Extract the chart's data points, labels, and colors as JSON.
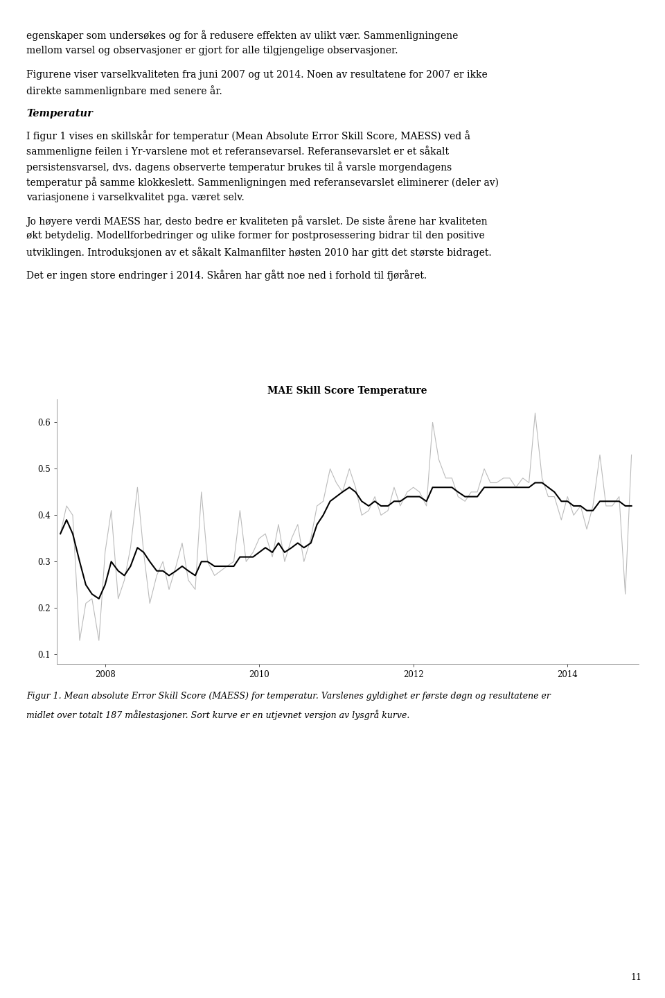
{
  "title": "MAE Skill Score Temperature",
  "caption_line1": "Figur 1. Mean absolute Error Skill Score (MAESS) for temperatur. Varslenes gyldighet er første døgn og resultatene er",
  "caption_line2": "midlet over totalt 187 målestasjoner. Sort kurve er en utjevnet versjon av lysgrå kurve.",
  "text_blocks": [
    "egenskaper som undersøkes og for å redusere effekten av ulikt vær. Sammenligningene",
    "mellom varsel og observasjoner er gjort for alle tilgjengelige observasjoner.",
    "",
    "Figurene viser varselkvaliteten fra juni 2007 og ut 2014. Noen av resultatene for 2007 er ikke",
    "direkte sammenlignbare med senere år."
  ],
  "bold_heading": "Temperatur",
  "paragraph1": "I figur 1 vises en skillskår for temperatur (Mean Absolute Error Skill Score, MAESS) ved å sammenligne feilen i Yr-varslene mot et referansevarsel. Referansevarslet er et såkalt persistensvarsel, dvs. dagens observerte temperatur brukes til å varsle morgendagens temperatur på samme klokkeslett. Sammenligningen med referansevarslet eliminerer (deler av) variasjonene i varselkvalitet pga. været selv.",
  "paragraph2": "Jo høyere verdi MAESS har, desto bedre er kvaliteten på varslet. De siste årene har kvaliteten økt betydelig. Modellforbedringer og ulike former for postprosessering bidrar til den positive utviklingen. Introduksjonen av et såkalt Kalmanfilter høsten 2010 har gitt det største bidraget.",
  "paragraph3": "Det er ingen store endringer i 2014. Skåren har gått noe ned i forhold til fjøråret.",
  "page_number": "11",
  "ylim": [
    0.08,
    0.65
  ],
  "yticks": [
    0.1,
    0.2,
    0.3,
    0.4,
    0.5,
    0.6
  ],
  "ytick_labels": [
    "0.1",
    "0.2",
    "0.3",
    "0.4",
    "0.5",
    "0.6"
  ],
  "xtick_positions": [
    2008.0,
    2010.0,
    2012.0,
    2014.0
  ],
  "xtick_labels": [
    "2008",
    "2010",
    "2012",
    "2014"
  ],
  "raw_color": "#bbbbbb",
  "smooth_color": "#000000",
  "raw_linewidth": 0.8,
  "smooth_linewidth": 1.5,
  "raw_x": [
    2007.42,
    2007.5,
    2007.58,
    2007.67,
    2007.75,
    2007.83,
    2007.92,
    2008.0,
    2008.08,
    2008.17,
    2008.25,
    2008.33,
    2008.42,
    2008.5,
    2008.58,
    2008.67,
    2008.75,
    2008.83,
    2008.92,
    2009.0,
    2009.08,
    2009.17,
    2009.25,
    2009.33,
    2009.42,
    2009.5,
    2009.58,
    2009.67,
    2009.75,
    2009.83,
    2009.92,
    2010.0,
    2010.08,
    2010.17,
    2010.25,
    2010.33,
    2010.42,
    2010.5,
    2010.58,
    2010.67,
    2010.75,
    2010.83,
    2010.92,
    2011.0,
    2011.08,
    2011.17,
    2011.25,
    2011.33,
    2011.42,
    2011.5,
    2011.58,
    2011.67,
    2011.75,
    2011.83,
    2011.92,
    2012.0,
    2012.08,
    2012.17,
    2012.25,
    2012.33,
    2012.42,
    2012.5,
    2012.58,
    2012.67,
    2012.75,
    2012.83,
    2012.92,
    2013.0,
    2013.08,
    2013.17,
    2013.25,
    2013.33,
    2013.42,
    2013.5,
    2013.58,
    2013.67,
    2013.75,
    2013.83,
    2013.92,
    2014.0,
    2014.08,
    2014.17,
    2014.25,
    2014.33,
    2014.42,
    2014.5,
    2014.58,
    2014.67,
    2014.75,
    2014.83
  ],
  "raw_y": [
    0.36,
    0.42,
    0.4,
    0.13,
    0.21,
    0.22,
    0.13,
    0.32,
    0.41,
    0.22,
    0.26,
    0.33,
    0.46,
    0.32,
    0.21,
    0.27,
    0.3,
    0.24,
    0.29,
    0.34,
    0.26,
    0.24,
    0.45,
    0.3,
    0.27,
    0.28,
    0.29,
    0.3,
    0.41,
    0.3,
    0.32,
    0.35,
    0.36,
    0.31,
    0.38,
    0.3,
    0.35,
    0.38,
    0.3,
    0.35,
    0.42,
    0.43,
    0.5,
    0.47,
    0.45,
    0.5,
    0.46,
    0.4,
    0.41,
    0.44,
    0.4,
    0.41,
    0.46,
    0.42,
    0.45,
    0.46,
    0.45,
    0.42,
    0.6,
    0.52,
    0.48,
    0.48,
    0.44,
    0.43,
    0.45,
    0.45,
    0.5,
    0.47,
    0.47,
    0.48,
    0.48,
    0.46,
    0.48,
    0.47,
    0.62,
    0.48,
    0.44,
    0.44,
    0.39,
    0.44,
    0.4,
    0.42,
    0.37,
    0.42,
    0.53,
    0.42,
    0.42,
    0.44,
    0.23,
    0.53
  ],
  "smooth_x": [
    2007.42,
    2007.5,
    2007.58,
    2007.67,
    2007.75,
    2007.83,
    2007.92,
    2008.0,
    2008.08,
    2008.17,
    2008.25,
    2008.33,
    2008.42,
    2008.5,
    2008.58,
    2008.67,
    2008.75,
    2008.83,
    2008.92,
    2009.0,
    2009.08,
    2009.17,
    2009.25,
    2009.33,
    2009.42,
    2009.5,
    2009.58,
    2009.67,
    2009.75,
    2009.83,
    2009.92,
    2010.0,
    2010.08,
    2010.17,
    2010.25,
    2010.33,
    2010.42,
    2010.5,
    2010.58,
    2010.67,
    2010.75,
    2010.83,
    2010.92,
    2011.0,
    2011.08,
    2011.17,
    2011.25,
    2011.33,
    2011.42,
    2011.5,
    2011.58,
    2011.67,
    2011.75,
    2011.83,
    2011.92,
    2012.0,
    2012.08,
    2012.17,
    2012.25,
    2012.33,
    2012.42,
    2012.5,
    2012.58,
    2012.67,
    2012.75,
    2012.83,
    2012.92,
    2013.0,
    2013.08,
    2013.17,
    2013.25,
    2013.33,
    2013.42,
    2013.5,
    2013.58,
    2013.67,
    2013.75,
    2013.83,
    2013.92,
    2014.0,
    2014.08,
    2014.17,
    2014.25,
    2014.33,
    2014.42,
    2014.5,
    2014.58,
    2014.67,
    2014.75,
    2014.83
  ],
  "smooth_y": [
    0.36,
    0.39,
    0.36,
    0.3,
    0.25,
    0.23,
    0.22,
    0.25,
    0.3,
    0.28,
    0.27,
    0.29,
    0.33,
    0.32,
    0.3,
    0.28,
    0.28,
    0.27,
    0.28,
    0.29,
    0.28,
    0.27,
    0.3,
    0.3,
    0.29,
    0.29,
    0.29,
    0.29,
    0.31,
    0.31,
    0.31,
    0.32,
    0.33,
    0.32,
    0.34,
    0.32,
    0.33,
    0.34,
    0.33,
    0.34,
    0.38,
    0.4,
    0.43,
    0.44,
    0.45,
    0.46,
    0.45,
    0.43,
    0.42,
    0.43,
    0.42,
    0.42,
    0.43,
    0.43,
    0.44,
    0.44,
    0.44,
    0.43,
    0.46,
    0.46,
    0.46,
    0.46,
    0.45,
    0.44,
    0.44,
    0.44,
    0.46,
    0.46,
    0.46,
    0.46,
    0.46,
    0.46,
    0.46,
    0.46,
    0.47,
    0.47,
    0.46,
    0.45,
    0.43,
    0.43,
    0.42,
    0.42,
    0.41,
    0.41,
    0.43,
    0.43,
    0.43,
    0.43,
    0.42,
    0.42
  ]
}
